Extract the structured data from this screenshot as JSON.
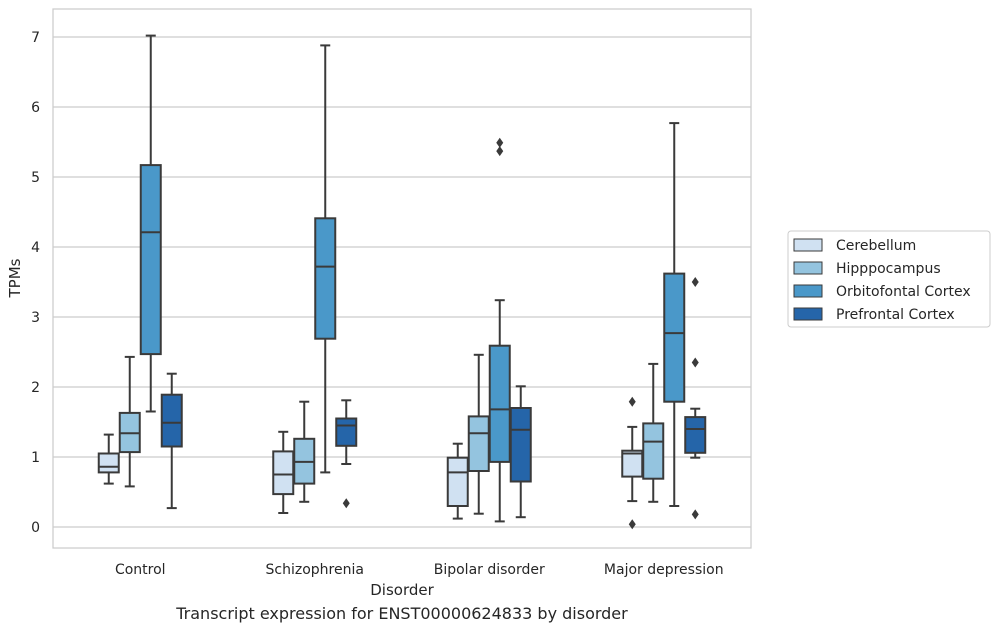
{
  "chart_data": {
    "type": "box",
    "title": "",
    "xlabel": "Disorder",
    "ylabel": "TPMs",
    "caption": "Transcript expression for ENST00000624833 by disorder",
    "ylim": [
      -0.3,
      7.4
    ],
    "yticks": [
      0,
      1,
      2,
      3,
      4,
      5,
      6,
      7
    ],
    "grid": true,
    "legend_position": "right",
    "categories": [
      "Control",
      "Schizophrenia",
      "Bipolar disorder",
      "Major depression"
    ],
    "series": [
      {
        "name": "Cerebellum",
        "color": "#d0e1f2",
        "boxes": [
          {
            "whisker_low": 0.62,
            "q1": 0.78,
            "median": 0.86,
            "q3": 1.05,
            "whisker_high": 1.32,
            "outliers": []
          },
          {
            "whisker_low": 0.2,
            "q1": 0.47,
            "median": 0.75,
            "q3": 1.08,
            "whisker_high": 1.36,
            "outliers": []
          },
          {
            "whisker_low": 0.12,
            "q1": 0.3,
            "median": 0.78,
            "q3": 0.99,
            "whisker_high": 1.19,
            "outliers": []
          },
          {
            "whisker_low": 0.37,
            "q1": 0.72,
            "median": 1.05,
            "q3": 1.09,
            "whisker_high": 1.43,
            "outliers": [
              0.04,
              1.79
            ]
          }
        ]
      },
      {
        "name": "Hipppocampus",
        "color": "#94c4df",
        "boxes": [
          {
            "whisker_low": 0.58,
            "q1": 1.07,
            "median": 1.34,
            "q3": 1.63,
            "whisker_high": 2.43,
            "outliers": []
          },
          {
            "whisker_low": 0.36,
            "q1": 0.62,
            "median": 0.93,
            "q3": 1.26,
            "whisker_high": 1.79,
            "outliers": []
          },
          {
            "whisker_low": 0.19,
            "q1": 0.8,
            "median": 1.34,
            "q3": 1.58,
            "whisker_high": 2.46,
            "outliers": []
          },
          {
            "whisker_low": 0.36,
            "q1": 0.69,
            "median": 1.22,
            "q3": 1.48,
            "whisker_high": 2.33,
            "outliers": []
          }
        ]
      },
      {
        "name": "Orbitofontal Cortex",
        "color": "#4a98c9",
        "boxes": [
          {
            "whisker_low": 1.65,
            "q1": 2.47,
            "median": 4.21,
            "q3": 5.17,
            "whisker_high": 7.02,
            "outliers": []
          },
          {
            "whisker_low": 0.78,
            "q1": 2.69,
            "median": 3.72,
            "q3": 4.41,
            "whisker_high": 6.88,
            "outliers": []
          },
          {
            "whisker_low": 0.08,
            "q1": 0.93,
            "median": 1.68,
            "q3": 2.59,
            "whisker_high": 3.24,
            "outliers": [
              5.37,
              5.49
            ]
          },
          {
            "whisker_low": 0.3,
            "q1": 1.79,
            "median": 2.77,
            "q3": 3.62,
            "whisker_high": 5.77,
            "outliers": []
          }
        ]
      },
      {
        "name": "Prefrontal Cortex",
        "color": "#2565a9",
        "boxes": [
          {
            "whisker_low": 0.27,
            "q1": 1.15,
            "median": 1.49,
            "q3": 1.89,
            "whisker_high": 2.19,
            "outliers": []
          },
          {
            "whisker_low": 0.9,
            "q1": 1.16,
            "median": 1.45,
            "q3": 1.55,
            "whisker_high": 1.81,
            "outliers": [
              0.34
            ]
          },
          {
            "whisker_low": 0.14,
            "q1": 0.65,
            "median": 1.39,
            "q3": 1.7,
            "whisker_high": 2.01,
            "outliers": []
          },
          {
            "whisker_low": 0.99,
            "q1": 1.06,
            "median": 1.4,
            "q3": 1.57,
            "whisker_high": 1.69,
            "outliers": [
              0.18,
              2.35,
              3.5
            ]
          }
        ]
      }
    ]
  }
}
